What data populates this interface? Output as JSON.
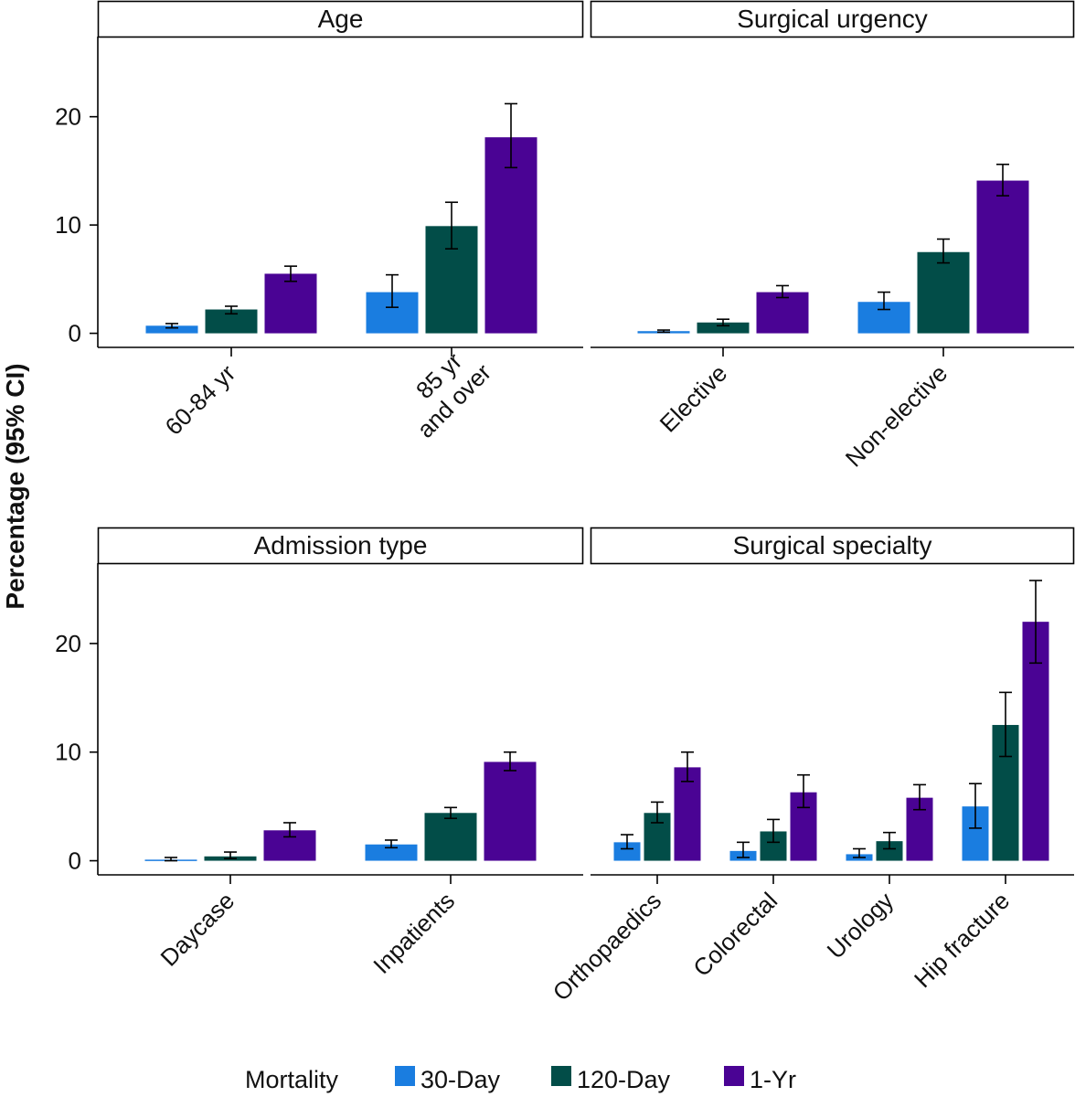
{
  "chart_data": {
    "type": "bar",
    "y_axis_title": "Percentage (95% CI)",
    "y_ticks": [
      "0",
      "10",
      "20"
    ],
    "series_names": [
      "30-Day",
      "120-Day",
      "1-Yr"
    ],
    "colors": {
      "30-Day": "#1a7de0",
      "120-Day": "#024d48",
      "1-Yr": "#4a0394"
    },
    "legend": {
      "title": "Mortality",
      "placement": "bottom",
      "items": [
        "30-Day",
        "120-Day",
        "1-Yr"
      ]
    },
    "panels": [
      {
        "title": "Age",
        "ylim": [
          -1.3,
          27.4
        ],
        "categories": [
          {
            "label": "60-84 yr",
            "values": [
              0.7,
              2.2,
              5.5
            ],
            "ci_low": [
              0.5,
              1.8,
              4.8
            ],
            "ci_high": [
              0.9,
              2.5,
              6.2
            ]
          },
          {
            "label": "85 yr\nand over",
            "values": [
              3.8,
              9.9,
              18.1
            ],
            "ci_low": [
              2.4,
              7.8,
              15.3
            ],
            "ci_high": [
              5.4,
              12.1,
              21.2
            ]
          }
        ]
      },
      {
        "title": "Surgical urgency",
        "ylim": [
          -1.3,
          27.4
        ],
        "categories": [
          {
            "label": "Elective",
            "values": [
              0.2,
              1.0,
              3.8
            ],
            "ci_low": [
              0.1,
              0.7,
              3.3
            ],
            "ci_high": [
              0.3,
              1.3,
              4.4
            ]
          },
          {
            "label": "Non-elective",
            "values": [
              2.9,
              7.5,
              14.1
            ],
            "ci_low": [
              2.2,
              6.5,
              12.7
            ],
            "ci_high": [
              3.8,
              8.7,
              15.6
            ]
          }
        ]
      },
      {
        "title": "Admission type",
        "ylim": [
          -1.3,
          27.4
        ],
        "categories": [
          {
            "label": "Daycase",
            "values": [
              0.1,
              0.4,
              2.8
            ],
            "ci_low": [
              0.0,
              0.2,
              2.2
            ],
            "ci_high": [
              0.3,
              0.8,
              3.5
            ]
          },
          {
            "label": "Inpatients",
            "values": [
              1.5,
              4.4,
              9.1
            ],
            "ci_low": [
              1.2,
              3.9,
              8.3
            ],
            "ci_high": [
              1.9,
              4.9,
              10.0
            ]
          }
        ]
      },
      {
        "title": "Surgical specialty",
        "ylim": [
          -1.3,
          27.4
        ],
        "categories": [
          {
            "label": "Orthopaedics",
            "values": [
              1.7,
              4.4,
              8.6
            ],
            "ci_low": [
              1.1,
              3.5,
              7.3
            ],
            "ci_high": [
              2.4,
              5.4,
              10.0
            ]
          },
          {
            "label": "Colorectal",
            "values": [
              0.9,
              2.7,
              6.3
            ],
            "ci_low": [
              0.3,
              1.7,
              4.9
            ],
            "ci_high": [
              1.7,
              3.8,
              7.9
            ]
          },
          {
            "label": "Urology",
            "values": [
              0.6,
              1.8,
              5.8
            ],
            "ci_low": [
              0.3,
              1.1,
              4.7
            ],
            "ci_high": [
              1.1,
              2.6,
              7.0
            ]
          },
          {
            "label": "Hip fracture",
            "values": [
              5.0,
              12.5,
              22.0
            ],
            "ci_low": [
              3.0,
              9.6,
              18.2
            ],
            "ci_high": [
              7.1,
              15.5,
              25.8
            ]
          }
        ]
      }
    ]
  }
}
